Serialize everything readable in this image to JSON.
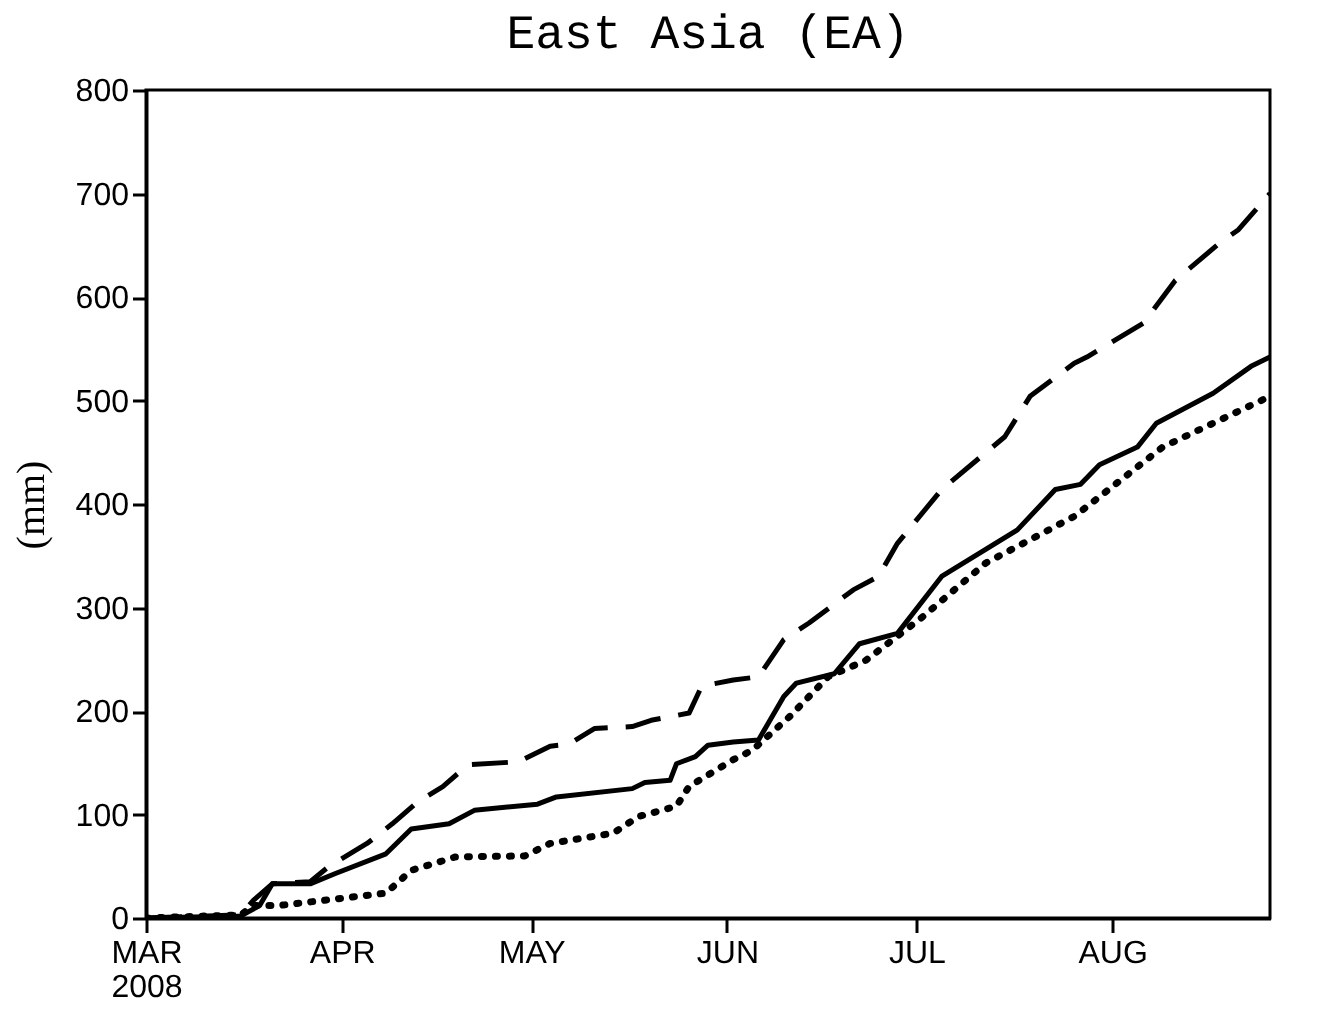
{
  "chart_data": {
    "type": "line",
    "title": "East Asia (EA)",
    "ylabel": "(mm)",
    "xlim": [
      "2008-03-01",
      "2008-08-26"
    ],
    "xticks": [
      {
        "value": "2008-03-01",
        "label": "MAR\n2008"
      },
      {
        "value": "2008-04-01",
        "label": "APR"
      },
      {
        "value": "2008-05-01",
        "label": "MAY"
      },
      {
        "value": "2008-06-01",
        "label": "JUN"
      },
      {
        "value": "2008-07-01",
        "label": "JUL"
      },
      {
        "value": "2008-08-01",
        "label": "AUG"
      }
    ],
    "ylim": [
      0,
      800
    ],
    "yticks": [
      0,
      100,
      200,
      300,
      400,
      500,
      600,
      700,
      800
    ],
    "grid": false,
    "marker": "none",
    "series": [
      {
        "color": "#000000",
        "line_style": "solid",
        "x": [
          "2008-03-01",
          "2008-03-16",
          "2008-03-19",
          "2008-03-21",
          "2008-03-27",
          "2008-03-31",
          "2008-04-08",
          "2008-04-12",
          "2008-04-18",
          "2008-04-22",
          "2008-05-02",
          "2008-05-05",
          "2008-05-17",
          "2008-05-19",
          "2008-05-23",
          "2008-05-24",
          "2008-05-27",
          "2008-05-29",
          "2008-06-02",
          "2008-06-06",
          "2008-06-10",
          "2008-06-12",
          "2008-06-18",
          "2008-06-22",
          "2008-06-28",
          "2008-07-05",
          "2008-07-17",
          "2008-07-23",
          "2008-07-27",
          "2008-07-30",
          "2008-08-05",
          "2008-08-08",
          "2008-08-17",
          "2008-08-23",
          "2008-08-26"
        ],
        "values": [
          0,
          2,
          12,
          33,
          33,
          43,
          62,
          86,
          91,
          104,
          110,
          117,
          125,
          131,
          133,
          149,
          156,
          167,
          170,
          172,
          214,
          227,
          236,
          265,
          275,
          330,
          375,
          414,
          419,
          438,
          455,
          478,
          507,
          533,
          542
        ]
      },
      {
        "color": "#000000",
        "line_style": "dashed",
        "x": [
          "2008-03-01",
          "2008-03-16",
          "2008-03-18",
          "2008-03-21",
          "2008-03-27",
          "2008-03-30",
          "2008-04-05",
          "2008-04-09",
          "2008-04-13",
          "2008-04-17",
          "2008-04-21",
          "2008-04-29",
          "2008-05-04",
          "2008-05-07",
          "2008-05-11",
          "2008-05-17",
          "2008-05-20",
          "2008-05-26",
          "2008-05-28",
          "2008-06-02",
          "2008-06-06",
          "2008-06-10",
          "2008-06-14",
          "2008-06-21",
          "2008-06-25",
          "2008-06-28",
          "2008-07-05",
          "2008-07-15",
          "2008-07-19",
          "2008-07-26",
          "2008-07-28",
          "2008-08-06",
          "2008-08-11",
          "2008-08-18",
          "2008-08-21",
          "2008-08-26"
        ],
        "values": [
          0,
          3,
          17,
          33,
          35,
          50,
          72,
          91,
          112,
          127,
          148,
          151,
          166,
          168,
          183,
          185,
          191,
          198,
          224,
          230,
          233,
          269,
          285,
          317,
          330,
          362,
          414,
          465,
          504,
          536,
          542,
          575,
          616,
          652,
          665,
          700
        ]
      },
      {
        "color": "#000000",
        "line_style": "dotted",
        "x": [
          "2008-03-01",
          "2008-03-16",
          "2008-03-18",
          "2008-03-22",
          "2008-04-08",
          "2008-04-12",
          "2008-04-19",
          "2008-04-30",
          "2008-05-04",
          "2008-05-14",
          "2008-05-18",
          "2008-05-24",
          "2008-05-26",
          "2008-06-02",
          "2008-06-05",
          "2008-06-11",
          "2008-06-17",
          "2008-06-23",
          "2008-07-02",
          "2008-07-12",
          "2008-07-26",
          "2008-07-30",
          "2008-08-09",
          "2008-08-26"
        ],
        "values": [
          0,
          3,
          12,
          12,
          24,
          46,
          59,
          60,
          72,
          82,
          98,
          108,
          127,
          153,
          162,
          195,
          233,
          249,
          291,
          343,
          388,
          407,
          455,
          504
        ]
      }
    ]
  }
}
